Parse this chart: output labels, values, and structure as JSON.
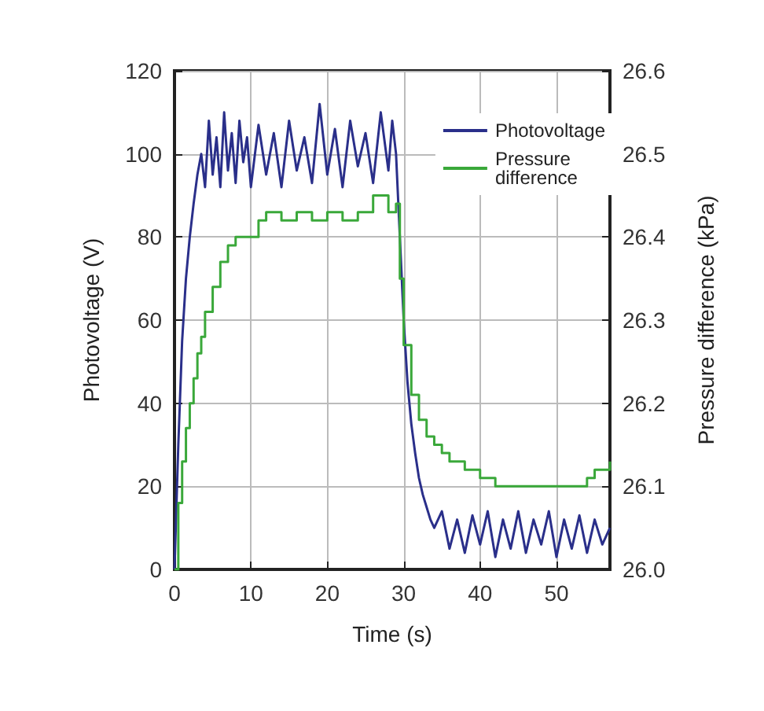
{
  "chart_data": {
    "type": "line",
    "xlabel": "Time (s)",
    "ylabel": "Photovoltage (V)",
    "y2label": "Pressure difference (kPa)",
    "xlim": [
      0,
      57
    ],
    "xticks": [
      0,
      10,
      20,
      30,
      40,
      50
    ],
    "ylim": [
      0,
      120
    ],
    "yticks": [
      0,
      20,
      40,
      60,
      80,
      100,
      120
    ],
    "y2lim": [
      26.0,
      26.6
    ],
    "y2ticks": [
      {
        "value": 26.0,
        "label": "26.0"
      },
      {
        "value": 26.1,
        "label": "26.1"
      },
      {
        "value": 26.2,
        "label": "26.2"
      },
      {
        "value": 26.3,
        "label": "26.3"
      },
      {
        "value": 26.4,
        "label": "26.4"
      },
      {
        "value": 26.5,
        "label": "26.5"
      },
      {
        "value": 26.6,
        "label": "26.6"
      }
    ],
    "grid": true,
    "legend": "top right",
    "marker": "none",
    "series": [
      {
        "name": "Photovoltage",
        "color": "#2a2f8a",
        "x": [
          0,
          0.5,
          1,
          1.5,
          2,
          2.5,
          3,
          3.5,
          4,
          4.5,
          5,
          5.5,
          6,
          6.5,
          7,
          7.5,
          8,
          8.5,
          9,
          9.5,
          10,
          11,
          12,
          13,
          14,
          15,
          16,
          17,
          18,
          19,
          20,
          21,
          22,
          23,
          24,
          25,
          26,
          27,
          28,
          28.5,
          29,
          29.5,
          30,
          30.5,
          31,
          31.5,
          32,
          32.5,
          33,
          33.5,
          34,
          35,
          36,
          37,
          38,
          39,
          40,
          41,
          42,
          43,
          44,
          45,
          46,
          47,
          48,
          49,
          50,
          51,
          52,
          53,
          54,
          55,
          56,
          57
        ],
        "values": [
          0,
          30,
          55,
          70,
          80,
          88,
          95,
          100,
          92,
          108,
          95,
          104,
          92,
          110,
          96,
          105,
          93,
          108,
          98,
          104,
          92,
          107,
          95,
          105,
          92,
          108,
          96,
          104,
          93,
          112,
          95,
          106,
          92,
          108,
          97,
          105,
          93,
          110,
          96,
          108,
          100,
          80,
          60,
          45,
          35,
          28,
          22,
          18,
          15,
          12,
          10,
          14,
          5,
          12,
          4,
          13,
          6,
          14,
          3,
          12,
          5,
          14,
          4,
          12,
          6,
          14,
          3,
          12,
          5,
          13,
          4,
          12,
          6,
          10
        ]
      },
      {
        "name": "Pressure difference",
        "type": "step",
        "axis": "y2",
        "color": "#3aa83a",
        "x": [
          0,
          0.5,
          1,
          1.5,
          2,
          2.5,
          3,
          3.5,
          4,
          5,
          6,
          7,
          8,
          10,
          11,
          12,
          14,
          16,
          18,
          20,
          22,
          24,
          26,
          28,
          29,
          29.5,
          30,
          31,
          32,
          33,
          34,
          35,
          36,
          38,
          40,
          42,
          44,
          46,
          48,
          50,
          52,
          54,
          55,
          56,
          57
        ],
        "values": [
          26.0,
          26.08,
          26.13,
          26.17,
          26.2,
          26.23,
          26.26,
          26.28,
          26.31,
          26.34,
          26.37,
          26.39,
          26.4,
          26.4,
          26.42,
          26.43,
          26.42,
          26.43,
          26.42,
          26.43,
          26.42,
          26.43,
          26.45,
          26.43,
          26.44,
          26.35,
          26.27,
          26.21,
          26.18,
          26.16,
          26.15,
          26.14,
          26.13,
          26.12,
          26.11,
          26.1,
          26.1,
          26.1,
          26.1,
          26.1,
          26.1,
          26.11,
          26.12,
          26.12,
          26.13
        ]
      }
    ]
  }
}
